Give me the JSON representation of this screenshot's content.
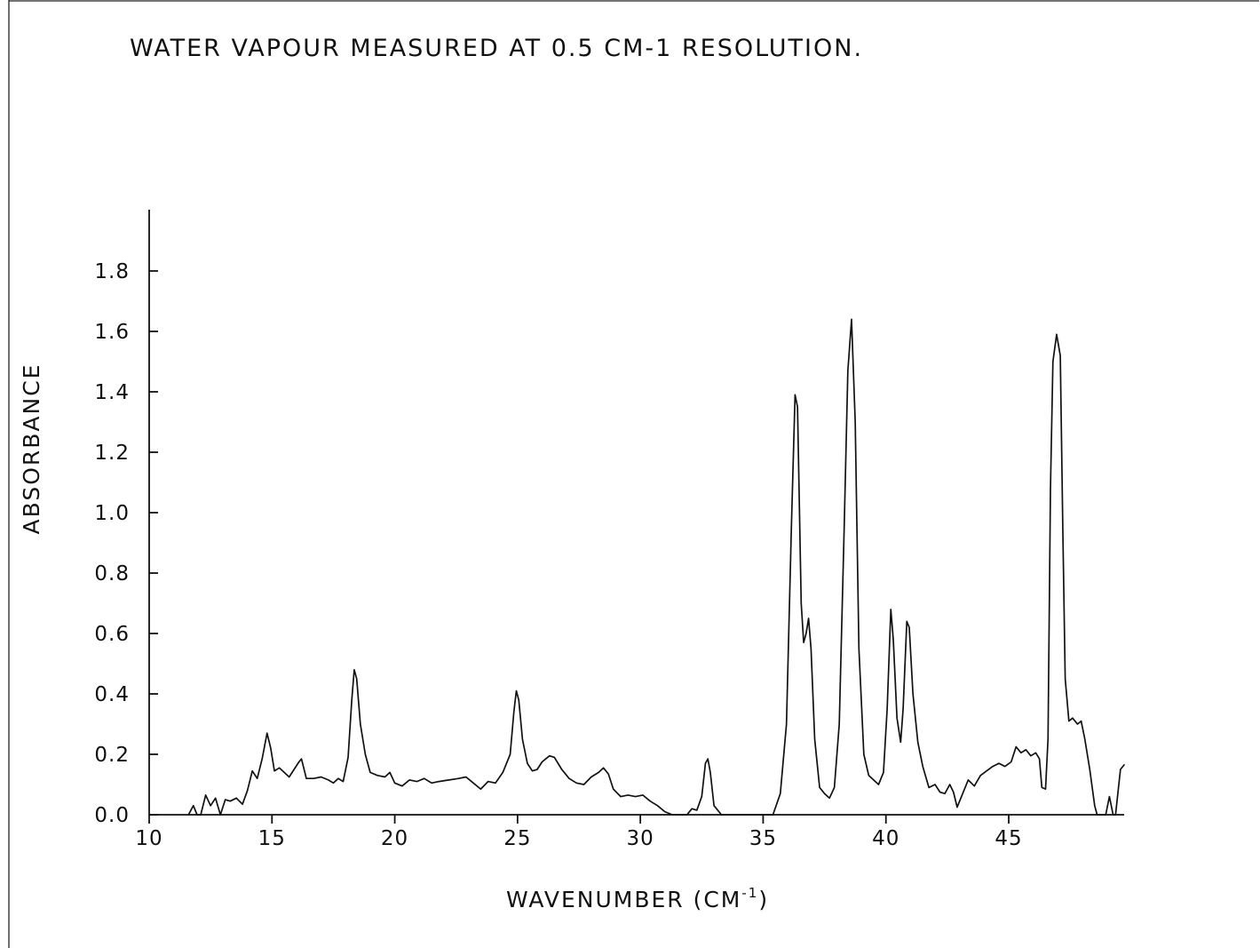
{
  "chart_data": {
    "type": "line",
    "title": "WATER VAPOUR MEASURED AT 0.5 CM-1 RESOLUTION.",
    "xlabel": {
      "main": "WAVENUMBER  (CM",
      "superscript": "-1",
      "suffix": ")"
    },
    "ylabel": "ABSORBANCE",
    "xlim": [
      10,
      49.7
    ],
    "ylim": [
      0.0,
      2.0
    ],
    "x_ticks": [
      10,
      15,
      20,
      25,
      30,
      35,
      40,
      45
    ],
    "x_tick_labels": [
      "10",
      "15",
      "20",
      "25",
      "30",
      "35",
      "40",
      "45"
    ],
    "y_ticks": [
      0.0,
      0.2,
      0.4,
      0.6,
      0.8,
      1.0,
      1.2,
      1.4,
      1.6,
      1.8
    ],
    "y_tick_labels": [
      "0.0",
      "0.2",
      "0.4",
      "0.6",
      "0.8",
      "1.0",
      "1.2",
      "1.4",
      "1.6",
      "1.8"
    ],
    "grid": false,
    "legend": "none",
    "series": [
      {
        "points": [
          [
            11.6,
            0.0
          ],
          [
            11.8,
            0.03
          ],
          [
            11.95,
            0.0
          ],
          [
            12.1,
            0.0
          ],
          [
            12.3,
            0.065
          ],
          [
            12.5,
            0.03
          ],
          [
            12.7,
            0.055
          ],
          [
            12.9,
            0.0
          ],
          [
            13.1,
            0.05
          ],
          [
            13.3,
            0.045
          ],
          [
            13.55,
            0.055
          ],
          [
            13.8,
            0.035
          ],
          [
            14.0,
            0.08
          ],
          [
            14.2,
            0.145
          ],
          [
            14.4,
            0.12
          ],
          [
            14.6,
            0.185
          ],
          [
            14.8,
            0.27
          ],
          [
            14.95,
            0.22
          ],
          [
            15.1,
            0.145
          ],
          [
            15.3,
            0.155
          ],
          [
            15.5,
            0.14
          ],
          [
            15.7,
            0.125
          ],
          [
            15.9,
            0.15
          ],
          [
            16.1,
            0.175
          ],
          [
            16.2,
            0.185
          ],
          [
            16.4,
            0.12
          ],
          [
            16.7,
            0.12
          ],
          [
            17.0,
            0.125
          ],
          [
            17.3,
            0.115
          ],
          [
            17.5,
            0.105
          ],
          [
            17.7,
            0.12
          ],
          [
            17.9,
            0.11
          ],
          [
            18.1,
            0.19
          ],
          [
            18.25,
            0.38
          ],
          [
            18.35,
            0.48
          ],
          [
            18.45,
            0.45
          ],
          [
            18.6,
            0.3
          ],
          [
            18.8,
            0.2
          ],
          [
            19.0,
            0.14
          ],
          [
            19.3,
            0.13
          ],
          [
            19.6,
            0.125
          ],
          [
            19.8,
            0.14
          ],
          [
            20.0,
            0.105
          ],
          [
            20.3,
            0.095
          ],
          [
            20.6,
            0.115
          ],
          [
            20.9,
            0.11
          ],
          [
            21.2,
            0.12
          ],
          [
            21.5,
            0.105
          ],
          [
            21.8,
            0.11
          ],
          [
            22.2,
            0.115
          ],
          [
            22.6,
            0.12
          ],
          [
            22.9,
            0.125
          ],
          [
            23.2,
            0.105
          ],
          [
            23.5,
            0.085
          ],
          [
            23.8,
            0.11
          ],
          [
            24.1,
            0.105
          ],
          [
            24.4,
            0.14
          ],
          [
            24.7,
            0.2
          ],
          [
            24.85,
            0.34
          ],
          [
            24.95,
            0.41
          ],
          [
            25.05,
            0.38
          ],
          [
            25.2,
            0.25
          ],
          [
            25.4,
            0.17
          ],
          [
            25.6,
            0.145
          ],
          [
            25.8,
            0.15
          ],
          [
            26.0,
            0.175
          ],
          [
            26.3,
            0.195
          ],
          [
            26.5,
            0.19
          ],
          [
            26.8,
            0.15
          ],
          [
            27.1,
            0.12
          ],
          [
            27.4,
            0.105
          ],
          [
            27.7,
            0.1
          ],
          [
            28.0,
            0.125
          ],
          [
            28.3,
            0.14
          ],
          [
            28.5,
            0.155
          ],
          [
            28.7,
            0.135
          ],
          [
            28.9,
            0.085
          ],
          [
            29.2,
            0.06
          ],
          [
            29.5,
            0.065
          ],
          [
            29.8,
            0.06
          ],
          [
            30.1,
            0.065
          ],
          [
            30.4,
            0.045
          ],
          [
            30.7,
            0.03
          ],
          [
            31.0,
            0.01
          ],
          [
            31.3,
            0.0
          ],
          [
            31.9,
            0.0
          ],
          [
            32.1,
            0.02
          ],
          [
            32.3,
            0.015
          ],
          [
            32.5,
            0.06
          ],
          [
            32.65,
            0.17
          ],
          [
            32.75,
            0.185
          ],
          [
            32.85,
            0.14
          ],
          [
            33.0,
            0.03
          ],
          [
            33.3,
            0.0
          ],
          [
            35.4,
            0.0
          ],
          [
            35.7,
            0.07
          ],
          [
            35.95,
            0.3
          ],
          [
            36.15,
            0.95
          ],
          [
            36.3,
            1.39
          ],
          [
            36.4,
            1.35
          ],
          [
            36.55,
            0.7
          ],
          [
            36.65,
            0.57
          ],
          [
            36.75,
            0.6
          ],
          [
            36.85,
            0.65
          ],
          [
            36.95,
            0.55
          ],
          [
            37.1,
            0.25
          ],
          [
            37.3,
            0.09
          ],
          [
            37.5,
            0.07
          ],
          [
            37.7,
            0.055
          ],
          [
            37.9,
            0.09
          ],
          [
            38.1,
            0.3
          ],
          [
            38.3,
            0.95
          ],
          [
            38.45,
            1.47
          ],
          [
            38.6,
            1.64
          ],
          [
            38.75,
            1.3
          ],
          [
            38.9,
            0.55
          ],
          [
            39.1,
            0.2
          ],
          [
            39.3,
            0.13
          ],
          [
            39.5,
            0.115
          ],
          [
            39.7,
            0.1
          ],
          [
            39.9,
            0.14
          ],
          [
            40.05,
            0.35
          ],
          [
            40.2,
            0.68
          ],
          [
            40.3,
            0.58
          ],
          [
            40.45,
            0.32
          ],
          [
            40.6,
            0.24
          ],
          [
            40.7,
            0.35
          ],
          [
            40.85,
            0.64
          ],
          [
            40.95,
            0.62
          ],
          [
            41.1,
            0.4
          ],
          [
            41.3,
            0.24
          ],
          [
            41.5,
            0.16
          ],
          [
            41.75,
            0.09
          ],
          [
            42.0,
            0.1
          ],
          [
            42.2,
            0.075
          ],
          [
            42.4,
            0.07
          ],
          [
            42.6,
            0.1
          ],
          [
            42.75,
            0.075
          ],
          [
            42.9,
            0.025
          ],
          [
            43.1,
            0.065
          ],
          [
            43.35,
            0.115
          ],
          [
            43.6,
            0.095
          ],
          [
            43.85,
            0.13
          ],
          [
            44.1,
            0.145
          ],
          [
            44.35,
            0.16
          ],
          [
            44.6,
            0.17
          ],
          [
            44.85,
            0.16
          ],
          [
            45.1,
            0.175
          ],
          [
            45.3,
            0.225
          ],
          [
            45.5,
            0.205
          ],
          [
            45.7,
            0.215
          ],
          [
            45.9,
            0.195
          ],
          [
            46.1,
            0.205
          ],
          [
            46.25,
            0.185
          ],
          [
            46.35,
            0.09
          ],
          [
            46.5,
            0.085
          ],
          [
            46.6,
            0.25
          ],
          [
            46.7,
            1.08
          ],
          [
            46.8,
            1.5
          ],
          [
            46.95,
            1.59
          ],
          [
            47.1,
            1.52
          ],
          [
            47.2,
            0.96
          ],
          [
            47.3,
            0.45
          ],
          [
            47.45,
            0.31
          ],
          [
            47.6,
            0.32
          ],
          [
            47.8,
            0.3
          ],
          [
            47.95,
            0.31
          ],
          [
            48.1,
            0.25
          ],
          [
            48.3,
            0.15
          ],
          [
            48.5,
            0.03
          ],
          [
            48.6,
            0.0
          ],
          [
            48.95,
            0.0
          ],
          [
            49.1,
            0.06
          ],
          [
            49.25,
            0.0
          ],
          [
            49.35,
            0.0
          ],
          [
            49.55,
            0.15
          ],
          [
            49.7,
            0.165
          ]
        ]
      }
    ]
  }
}
